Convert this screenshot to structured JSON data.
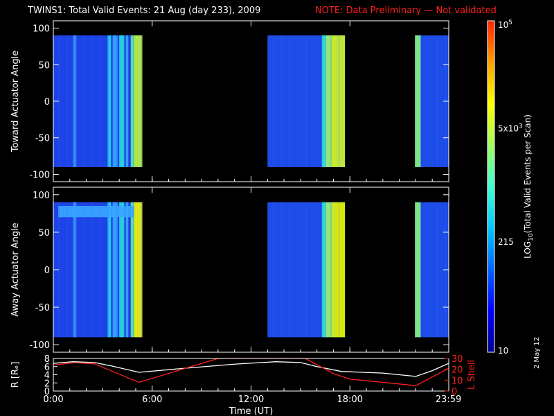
{
  "title": "TWINS1: Total Valid Events: 21 Aug (day 233), 2009",
  "note": "NOTE: Data Preliminary — Not validated",
  "date_stamp": "2 May 12",
  "colors": {
    "background": "#000000",
    "axes": "#ffffff",
    "note": "#ff2020",
    "r_line": "#ffffff",
    "lshell_line": "#ff2020",
    "colormap": [
      "#00008c",
      "#0000ff",
      "#0064ff",
      "#00c8ff",
      "#40ffd0",
      "#a0ff60",
      "#ffff00",
      "#ffa000",
      "#ff2000"
    ]
  },
  "chart_data": [
    {
      "type": "heatmap",
      "panel": "toward",
      "ylabel": "Toward Actuator Angle",
      "ylim": [
        -110,
        110
      ],
      "xlim": [
        0,
        24
      ],
      "yticks": [
        100,
        50,
        0,
        -50,
        -100
      ],
      "data_y_range": [
        -90,
        90
      ],
      "segments": [
        {
          "start_hr": 0.0,
          "end_hr": 5.4,
          "base": "#1d44e6",
          "stripes": [
            {
              "from": 1.2,
              "to": 1.4,
              "color": "#3a8cff"
            },
            {
              "from": 3.3,
              "to": 3.5,
              "color": "#22d4ee"
            },
            {
              "from": 3.6,
              "to": 3.9,
              "color": "#3aa0ff"
            },
            {
              "from": 4.0,
              "to": 4.3,
              "color": "#26d6d8"
            },
            {
              "from": 4.4,
              "to": 4.55,
              "color": "#3aa0ff"
            },
            {
              "from": 4.7,
              "to": 4.9,
              "color": "#60e8a0"
            },
            {
              "from": 4.9,
              "to": 5.4,
              "color": "#b6f040"
            }
          ]
        },
        {
          "start_hr": 13.0,
          "end_hr": 17.7,
          "base": "#1d4ce8",
          "stripes": [
            {
              "from": 16.3,
              "to": 16.55,
              "color": "#38e0d0"
            },
            {
              "from": 16.55,
              "to": 16.9,
              "color": "#9af070"
            },
            {
              "from": 16.9,
              "to": 17.15,
              "color": "#d4f020"
            },
            {
              "from": 17.15,
              "to": 17.7,
              "color": "#c8ee30"
            }
          ]
        },
        {
          "start_hr": 21.95,
          "end_hr": 24.0,
          "base": "#1d4ce8",
          "stripes": [
            {
              "from": 21.95,
              "to": 22.3,
              "color": "#80ec80"
            }
          ]
        }
      ]
    },
    {
      "type": "heatmap",
      "panel": "away",
      "ylabel": "Away Actuator Angle",
      "ylim": [
        -110,
        110
      ],
      "xlim": [
        0,
        24
      ],
      "yticks": [
        100,
        50,
        0,
        -50,
        -100
      ],
      "data_y_range": [
        -90,
        90
      ],
      "segments": [
        {
          "start_hr": 0.0,
          "end_hr": 5.4,
          "base": "#1d44e6",
          "stripes": [
            {
              "from": 1.2,
              "to": 1.4,
              "color": "#3a8cff"
            },
            {
              "from": 3.3,
              "to": 3.5,
              "color": "#22d4ee"
            },
            {
              "from": 3.6,
              "to": 3.9,
              "color": "#3aa0ff"
            },
            {
              "from": 4.0,
              "to": 4.3,
              "color": "#26d6d8"
            },
            {
              "from": 4.4,
              "to": 4.55,
              "color": "#3aa0ff"
            },
            {
              "from": 4.7,
              "to": 4.9,
              "color": "#60e8a0"
            },
            {
              "from": 4.9,
              "to": 5.4,
              "color": "#e8f010"
            }
          ],
          "band": {
            "y_from": 70,
            "y_to": 85,
            "color": "#3aa8ff",
            "x_from": 0.3,
            "x_to": 4.9
          }
        },
        {
          "start_hr": 13.0,
          "end_hr": 17.7,
          "base": "#1d4ce8",
          "stripes": [
            {
              "from": 16.3,
              "to": 16.55,
              "color": "#38e0d0"
            },
            {
              "from": 16.55,
              "to": 16.9,
              "color": "#9af070"
            },
            {
              "from": 16.9,
              "to": 17.15,
              "color": "#d4f020"
            },
            {
              "from": 17.15,
              "to": 17.7,
              "color": "#e0f000"
            }
          ]
        },
        {
          "start_hr": 21.95,
          "end_hr": 24.0,
          "base": "#1d4ce8",
          "stripes": [
            {
              "from": 21.95,
              "to": 22.3,
              "color": "#80ec80"
            }
          ]
        }
      ]
    },
    {
      "type": "line",
      "panel": "orbit",
      "xlabel": "Time (UT)",
      "ylabel": "R [Rₑ]",
      "y2label": "L Shell",
      "xlim": [
        0,
        24
      ],
      "ylim": [
        0,
        8
      ],
      "y2lim": [
        0,
        30
      ],
      "xticks": [
        {
          "value": 0,
          "label": "0:00"
        },
        {
          "value": 6,
          "label": "6:00"
        },
        {
          "value": 12,
          "label": "12:00"
        },
        {
          "value": 18,
          "label": "18:00"
        },
        {
          "value": 23.98,
          "label": "23:59"
        }
      ],
      "yticks": [
        8,
        6,
        4,
        2,
        0
      ],
      "y2ticks": [
        30,
        20,
        10,
        0
      ],
      "series": [
        {
          "axis": "left",
          "color": "#ffffff",
          "x": [
            0,
            1.2,
            2.5,
            3.5,
            5.2,
            8,
            11,
            13.5,
            15,
            16,
            17.5,
            20,
            22,
            23,
            24
          ],
          "y": [
            6.8,
            7.2,
            7.0,
            6.2,
            4.6,
            5.6,
            6.6,
            7.2,
            7.0,
            6.0,
            4.8,
            4.4,
            3.6,
            5.0,
            6.8
          ]
        },
        {
          "axis": "right",
          "color": "#ff2020",
          "x": [
            0,
            1.3,
            2.5,
            5.2,
            10.0,
            15.3,
            17.0,
            18.0,
            22.0,
            24.0
          ],
          "y": [
            24,
            26,
            25,
            8,
            30,
            30,
            16,
            11,
            5,
            21
          ]
        }
      ]
    },
    {
      "type": "colorbar",
      "label": "LOG10(Total Valid Events per Scan)",
      "label_main": "LOG",
      "label_sub": "10",
      "label_rest": "(Total Valid Events per Scan)",
      "ticks": [
        {
          "value": 100000,
          "label_base": "10",
          "label_exp": "5"
        },
        {
          "value": 5000,
          "label_base": "5x10",
          "label_exp": "3"
        },
        {
          "value": 215,
          "label_base": "215",
          "label_exp": ""
        },
        {
          "value": 10,
          "label_base": "10",
          "label_exp": ""
        }
      ],
      "range": [
        10,
        100000
      ],
      "scale": "log"
    }
  ]
}
